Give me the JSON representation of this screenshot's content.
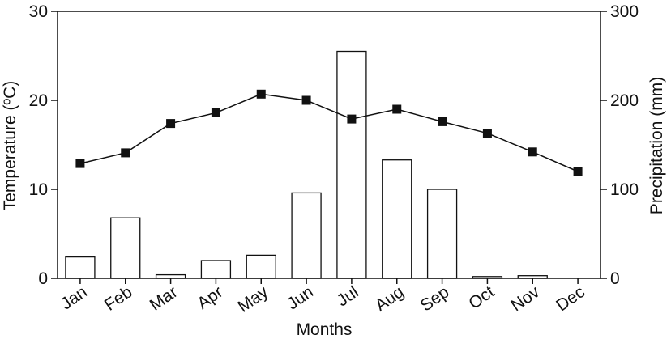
{
  "chart_data": {
    "type": "bar",
    "xlabel": "Months",
    "ylabel_left": "Temperature (ºC)",
    "ylabel_right": "Precipitation (mm)",
    "ylim_left": [
      0,
      30
    ],
    "ylim_right": [
      0,
      300
    ],
    "yticks_left": [
      "0",
      "10",
      "20",
      "30"
    ],
    "yticks_right": [
      "0",
      "100",
      "200",
      "300"
    ],
    "categories": [
      "Jan",
      "Feb",
      "Mar",
      "Apr",
      "May",
      "Jun",
      "Jul",
      "Aug",
      "Sep",
      "Oct",
      "Nov",
      "Dec"
    ],
    "grid": false,
    "series": [
      {
        "type": "bar",
        "axis": "right",
        "values": [
          24,
          68,
          4,
          20,
          26,
          96,
          255,
          133,
          100,
          2,
          3,
          0
        ],
        "fill": "#ffffff",
        "stroke": "#111111"
      },
      {
        "type": "line",
        "axis": "left",
        "values": [
          12.9,
          14.1,
          17.4,
          18.6,
          20.7,
          20.0,
          17.9,
          19.0,
          17.6,
          16.3,
          14.2,
          12.0
        ],
        "color": "#111111",
        "marker": "square"
      }
    ]
  }
}
